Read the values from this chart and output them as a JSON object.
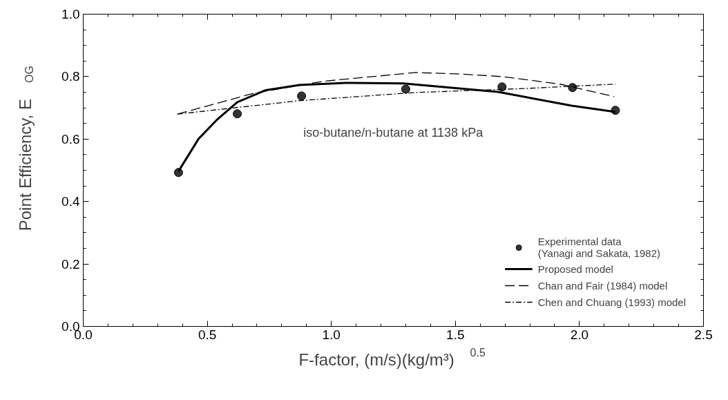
{
  "chart_data": {
    "type": "line",
    "xlabel": "F-factor, (m/s)(kg/m³)$^{0.5}$",
    "ylabel": "Point Efficiency, E$_{OG}$",
    "annotations": [
      "iso-butane/n-butane at 1138 kPa"
    ],
    "xlim": [
      0,
      2.5
    ],
    "ylim": [
      0,
      1.0
    ],
    "xticks": [
      {
        "value": 0,
        "label": "0.0"
      },
      0.5,
      {
        "value": 1,
        "label": "1.0"
      },
      1.5,
      {
        "value": 2,
        "label": "2.0"
      },
      2.5
    ],
    "yticks": [
      {
        "value": 0,
        "label": "0.0"
      },
      0.2,
      0.4,
      0.6,
      0.8,
      {
        "value": 1,
        "label": "1.0"
      }
    ],
    "grid": false,
    "legend": "bottom right",
    "series": [
      {
        "name": "Experimental data\n(Yanagi and Sakata, 1982)",
        "type": "scatter",
        "marker": "circle",
        "color": "#333333",
        "x": [
          0.384,
          0.621,
          0.88,
          1.3,
          1.688,
          1.972,
          2.145
        ],
        "values": [
          0.493,
          0.681,
          0.738,
          0.76,
          0.767,
          0.765,
          0.692
        ]
      },
      {
        "name": "Proposed model",
        "type": "line",
        "line_style": "solid",
        "color": "#000000",
        "x": [
          0.384,
          0.465,
          0.538,
          0.621,
          0.733,
          0.872,
          1.058,
          1.29,
          1.671,
          1.969,
          2.145
        ],
        "values": [
          0.497,
          0.601,
          0.661,
          0.718,
          0.756,
          0.773,
          0.78,
          0.778,
          0.751,
          0.707,
          0.687
        ]
      },
      {
        "name": "Chan and Fair (1984) model",
        "type": "line",
        "line_style": "dashed",
        "color": "#000000",
        "x": [
          0.38,
          0.688,
          0.967,
          1.337,
          1.504,
          1.69,
          1.922,
          2.14
        ],
        "values": [
          0.68,
          0.747,
          0.785,
          0.813,
          0.809,
          0.8,
          0.776,
          0.736
        ]
      },
      {
        "name": "Chen and Chuang (1993) model",
        "type": "line",
        "line_style": "dashdot",
        "color": "#000000",
        "x": [
          0.38,
          0.872,
          1.337,
          1.783,
          2.145
        ],
        "values": [
          0.68,
          0.723,
          0.749,
          0.762,
          0.776
        ]
      }
    ]
  }
}
